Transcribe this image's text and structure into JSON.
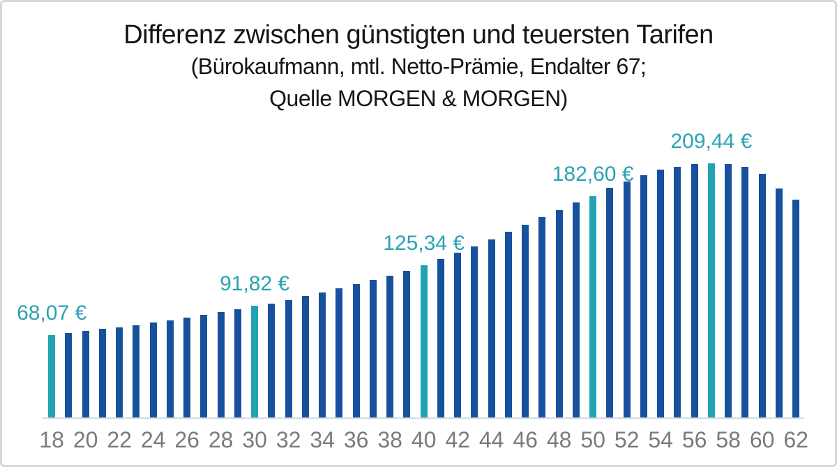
{
  "title": {
    "line1": "Differenz zwischen günstigten und teuersten Tarifen",
    "line2": "(Bürokaufmann, mtl. Netto-Prämie, Endalter 67;",
    "line3": "Quelle MORGEN & MORGEN)"
  },
  "colors": {
    "bar": "#17519e",
    "highlight_bar": "#21a3b1",
    "data_label_text": "#2aa2b3",
    "tick_text": "#7a7a7a",
    "axis_line": "#d9d9d9",
    "title_text": "#151515",
    "frame_border": "#d7d7d7",
    "background": "#ffffff"
  },
  "chart_data": {
    "type": "bar",
    "title": "Differenz zwischen günstigten und teuersten Tarifen",
    "subtitle": "(Bürokaufmann, mtl. Netto-Prämie, Endalter 67; Quelle MORGEN & MORGEN)",
    "xlabel": "",
    "ylabel": "",
    "unit": "€ (mtl. Netto-Prämie)",
    "grid": false,
    "legend": false,
    "ylim": [
      0,
      225
    ],
    "x": [
      18,
      19,
      20,
      21,
      22,
      23,
      24,
      25,
      26,
      27,
      28,
      29,
      30,
      31,
      32,
      33,
      34,
      35,
      36,
      37,
      38,
      39,
      40,
      41,
      42,
      43,
      44,
      45,
      46,
      47,
      48,
      49,
      50,
      51,
      52,
      53,
      54,
      55,
      56,
      57,
      58,
      59,
      60,
      61,
      62
    ],
    "values": [
      68.07,
      69.6,
      71.4,
      72.9,
      74.4,
      76.2,
      78.4,
      80.0,
      82.2,
      84.3,
      86.6,
      89.3,
      91.82,
      94.0,
      96.9,
      100.0,
      103.0,
      106.4,
      109.7,
      113.2,
      117.0,
      121.1,
      125.34,
      130.8,
      135.9,
      141.0,
      146.7,
      153.0,
      158.8,
      165.1,
      171.1,
      177.3,
      182.6,
      189.1,
      194.6,
      199.7,
      204.2,
      206.6,
      208.6,
      209.44,
      208.8,
      206.4,
      200.9,
      188.9,
      179.3
    ],
    "highlighted_x": [
      18,
      30,
      40,
      50,
      57
    ],
    "data_labels": [
      {
        "x": 18,
        "text": "68,07 €"
      },
      {
        "x": 30,
        "text": "91,82 €"
      },
      {
        "x": 40,
        "text": "125,34 €"
      },
      {
        "x": 50,
        "text": "182,60 €"
      },
      {
        "x": 57,
        "text": "209,44 €"
      }
    ],
    "x_tick_labels": [
      "18",
      "20",
      "22",
      "24",
      "26",
      "28",
      "30",
      "32",
      "34",
      "36",
      "38",
      "40",
      "42",
      "44",
      "46",
      "48",
      "50",
      "52",
      "54",
      "56",
      "58",
      "60",
      "62"
    ]
  }
}
